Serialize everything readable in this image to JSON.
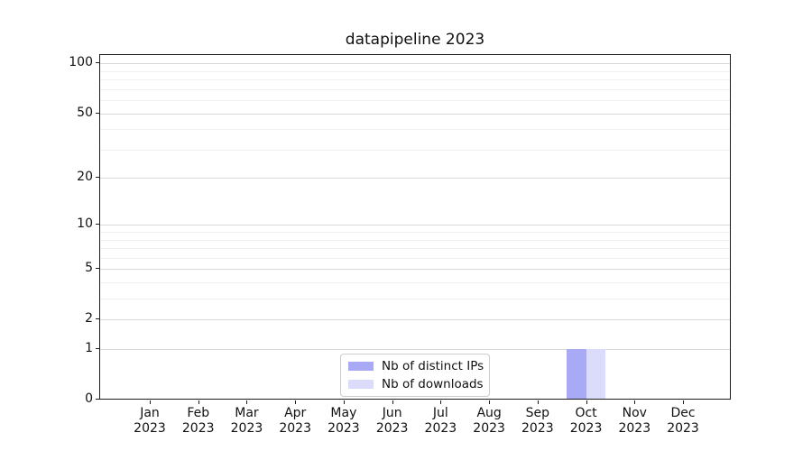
{
  "chart_data": {
    "type": "bar",
    "title": "datapipeline 2023",
    "categories": [
      "Jan",
      "Feb",
      "Mar",
      "Apr",
      "May",
      "Jun",
      "Jul",
      "Aug",
      "Sep",
      "Oct",
      "Nov",
      "Dec"
    ],
    "category_year": "2023",
    "series": [
      {
        "name": "Nb of distinct IPs",
        "color": "#a9aaf6",
        "values": [
          0,
          0,
          0,
          0,
          0,
          0,
          0,
          0,
          0,
          1,
          0,
          0
        ]
      },
      {
        "name": "Nb of downloads",
        "color": "#dbdcfb",
        "values": [
          0,
          0,
          0,
          0,
          0,
          0,
          0,
          0,
          0,
          1,
          0,
          0
        ]
      }
    ],
    "xlabel": "",
    "ylabel": "",
    "yscale": "log1p",
    "ylim": [
      0,
      114
    ],
    "y_major_ticks": [
      0,
      1,
      2,
      5,
      10,
      20,
      50,
      100
    ],
    "y_minor_gridlines": [
      3,
      4,
      6,
      7,
      8,
      9,
      30,
      40,
      60,
      70,
      80,
      90
    ],
    "grid": true,
    "legend_position": "lower center"
  },
  "colors": {
    "major_grid": "#d8d8d8",
    "minor_grid": "#f0f0f0",
    "spine": "#1c1c1c",
    "legend_border": "#cccccc",
    "background": "#ffffff"
  }
}
